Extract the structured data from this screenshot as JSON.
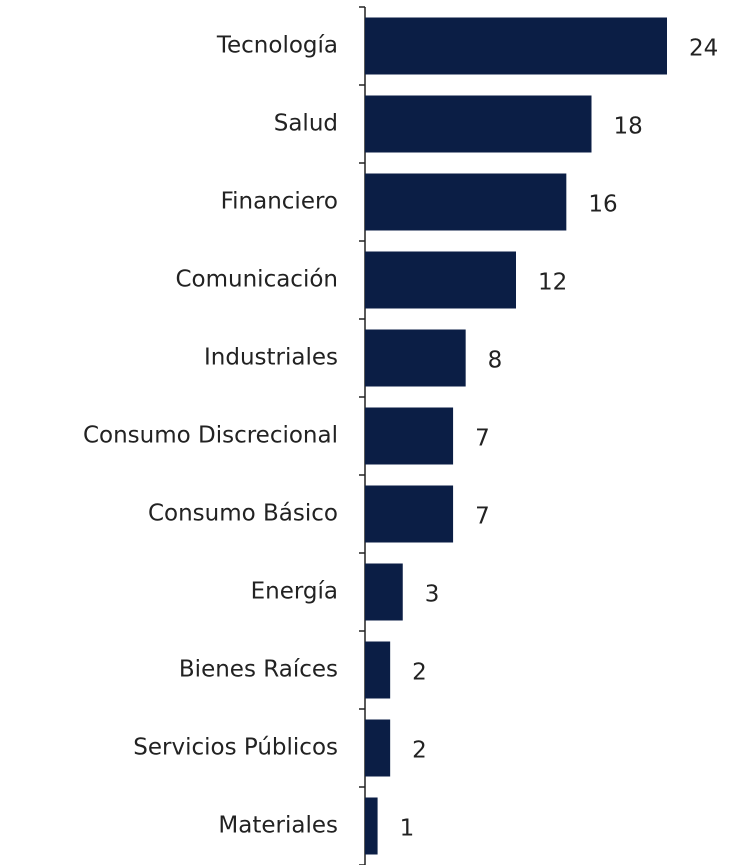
{
  "chart_data": {
    "type": "bar",
    "orientation": "horizontal",
    "categories": [
      "Tecnología",
      "Salud",
      "Financiero",
      "Comunicación",
      "Industriales",
      "Consumo Discrecional",
      "Consumo Básico",
      "Energía",
      "Bienes Raíces",
      "Servicios Públicos",
      "Materiales"
    ],
    "values": [
      24,
      18,
      16,
      12,
      8,
      7,
      7,
      3,
      2,
      2,
      1
    ],
    "color": "#0b1e45",
    "xlim": [
      0,
      24
    ]
  }
}
